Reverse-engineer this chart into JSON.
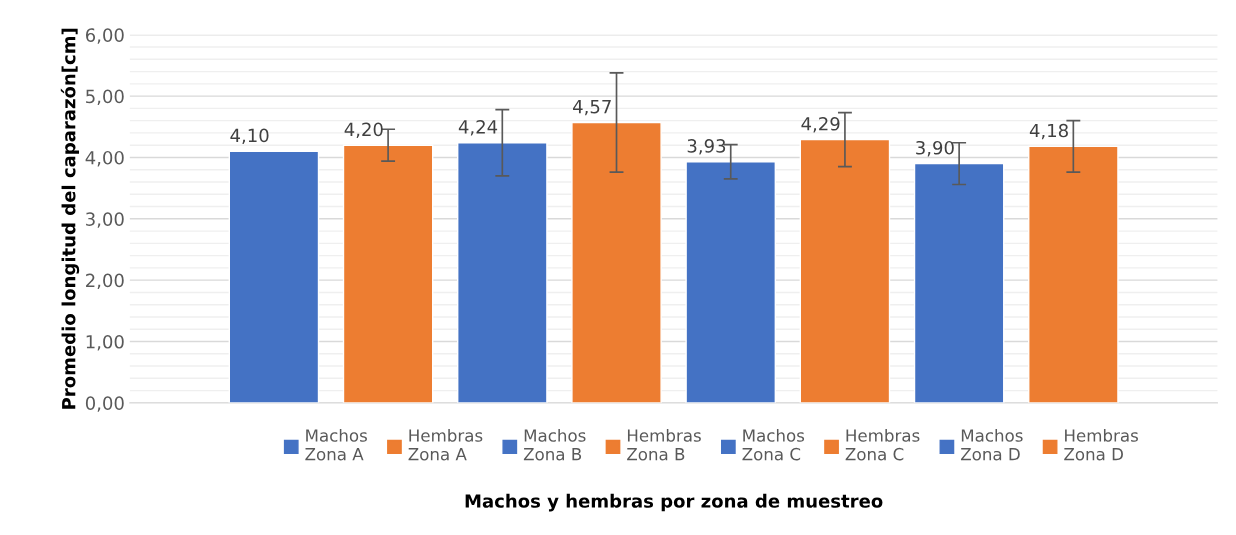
{
  "chart_data": {
    "type": "bar",
    "xlabel": "Machos y hembras por zona de muestreo",
    "ylabel": "Promedio longitud del caparazón[cm]",
    "categories": [
      null
    ],
    "series": [
      {
        "name": "Machos\nZona A",
        "color": "#4472c4",
        "values": [
          4.1
        ],
        "errors": [
          null
        ],
        "value_labels": [
          "4,10"
        ]
      },
      {
        "name": "Hembras\nZona A",
        "color": "#ed7d31",
        "values": [
          4.2
        ],
        "errors": [
          0.26
        ],
        "value_labels": [
          "4,20"
        ]
      },
      {
        "name": "Machos\nZona B",
        "color": "#4472c4",
        "values": [
          4.24
        ],
        "errors": [
          0.54
        ],
        "value_labels": [
          "4,24"
        ]
      },
      {
        "name": "Hembras\nZona B",
        "color": "#ed7d31",
        "values": [
          4.57
        ],
        "errors": [
          0.81
        ],
        "value_labels": [
          "4,57"
        ]
      },
      {
        "name": "Machos\nZona C",
        "color": "#4472c4",
        "values": [
          3.93
        ],
        "errors": [
          0.28
        ],
        "value_labels": [
          "3,93"
        ]
      },
      {
        "name": "Hembras\nZona C",
        "color": "#ed7d31",
        "values": [
          4.29
        ],
        "errors": [
          0.44
        ],
        "value_labels": [
          "4,29"
        ]
      },
      {
        "name": "Machos\nZona D",
        "color": "#4472c4",
        "values": [
          3.9
        ],
        "errors": [
          0.34
        ],
        "value_labels": [
          "3,90"
        ]
      },
      {
        "name": "Hembras\nZona D",
        "color": "#ed7d31",
        "values": [
          4.18
        ],
        "errors": [
          0.42
        ],
        "value_labels": [
          "4,18"
        ]
      }
    ],
    "ylim": [
      0,
      6
    ],
    "yticks": [
      {
        "value": 0,
        "label": "0,00"
      },
      {
        "value": 0.2,
        "label": null
      },
      {
        "value": 0.4,
        "label": null
      },
      {
        "value": 0.6,
        "label": null
      },
      {
        "value": 0.8,
        "label": null
      },
      {
        "value": 1,
        "label": "1,00"
      },
      {
        "value": 1.2,
        "label": null
      },
      {
        "value": 1.4,
        "label": null
      },
      {
        "value": 1.6,
        "label": null
      },
      {
        "value": 1.8,
        "label": null
      },
      {
        "value": 2,
        "label": "2,00"
      },
      {
        "value": 2.2,
        "label": null
      },
      {
        "value": 2.4,
        "label": null
      },
      {
        "value": 2.6,
        "label": null
      },
      {
        "value": 2.8,
        "label": null
      },
      {
        "value": 3,
        "label": "3,00"
      },
      {
        "value": 3.2,
        "label": null
      },
      {
        "value": 3.4,
        "label": null
      },
      {
        "value": 3.6,
        "label": null
      },
      {
        "value": 3.8,
        "label": null
      },
      {
        "value": 4,
        "label": "4,00"
      },
      {
        "value": 4.2,
        "label": null
      },
      {
        "value": 4.4,
        "label": null
      },
      {
        "value": 4.6,
        "label": null
      },
      {
        "value": 4.8,
        "label": null
      },
      {
        "value": 5,
        "label": "5,00"
      },
      {
        "value": 5.2,
        "label": null
      },
      {
        "value": 5.4,
        "label": null
      },
      {
        "value": 5.6,
        "label": null
      },
      {
        "value": 5.8,
        "label": null
      },
      {
        "value": 6,
        "label": "6,00"
      }
    ],
    "grid": "y",
    "legend": "bottom"
  }
}
